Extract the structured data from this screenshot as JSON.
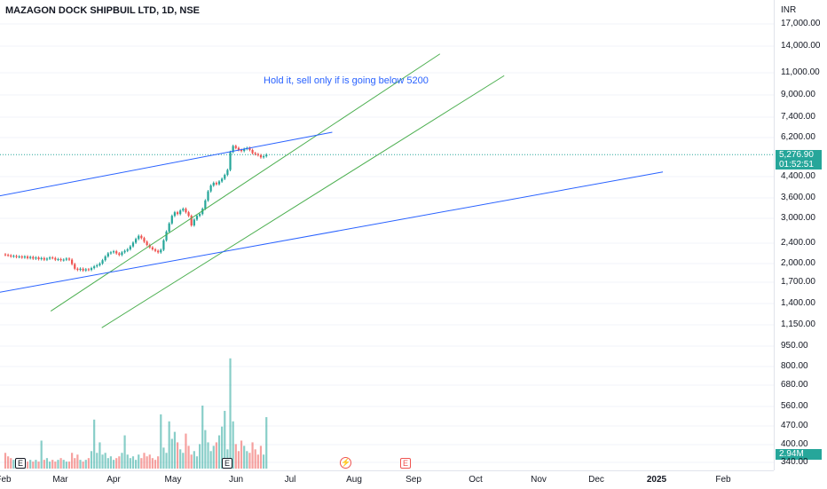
{
  "header": {
    "title": "MAZAGON DOCK SHIPBUIL LTD, 1D, NSE",
    "currency": "INR"
  },
  "annotation": "Hold it, sell only if is going below 5200",
  "price_tag": {
    "price": "5,276.90",
    "countdown": "01:52:51"
  },
  "volume_tag": "2.94M",
  "colors": {
    "up": "#26a69a",
    "down": "#ef5350",
    "channel": "#4caf50",
    "trend": "#2962ff"
  },
  "events": {
    "earnings_label": "E",
    "flash_icon": "lightning-icon"
  },
  "chart_data": {
    "type": "candlestick",
    "title": "MAZAGON DOCK SHIPBUIL LTD, 1D, NSE",
    "scale": "log",
    "price_axis_ticks": [
      "17,000.00",
      "14,000.00",
      "11,000.00",
      "9,000.00",
      "7,400.00",
      "6,200.00",
      "4,400.00",
      "3,600.00",
      "3,000.00",
      "2,400.00",
      "2,000.00",
      "1,700.00",
      "1,400.00",
      "1,150.00",
      "950.00",
      "800.00",
      "680.00",
      "560.00",
      "470.00",
      "400.00",
      "340.00"
    ],
    "time_axis_ticks": [
      "Feb",
      "Mar",
      "Apr",
      "May",
      "Jun",
      "Jul",
      "Aug",
      "Sep",
      "Oct",
      "Nov",
      "Dec",
      "2025",
      "Feb"
    ],
    "last_price": 5276.9,
    "closes": [
      2150,
      2140,
      2120,
      2130,
      2110,
      2120,
      2100,
      2120,
      2090,
      2110,
      2080,
      2100,
      2070,
      2090,
      2060,
      2080,
      2100,
      2090,
      2060,
      2070,
      2050,
      2060,
      2080,
      2060,
      1980,
      1900,
      1880,
      1900,
      1870,
      1890,
      1880,
      1910,
      1940,
      1960,
      1990,
      2050,
      2120,
      2180,
      2200,
      2220,
      2180,
      2150,
      2200,
      2230,
      2260,
      2320,
      2400,
      2480,
      2550,
      2500,
      2420,
      2350,
      2300,
      2260,
      2230,
      2200,
      2250,
      2450,
      2650,
      2850,
      3050,
      3150,
      3100,
      3200,
      3250,
      3150,
      3050,
      2800,
      2950,
      3050,
      3100,
      3250,
      3500,
      3800,
      4000,
      4100,
      4050,
      4150,
      4250,
      4400,
      4600,
      5400,
      5700,
      5600,
      5500,
      5450,
      5550,
      5600,
      5500,
      5350,
      5300,
      5250,
      5150,
      5200,
      5277
    ],
    "volumes": [
      0.9,
      0.7,
      0.6,
      0.5,
      0.4,
      0.5,
      0.6,
      0.5,
      0.4,
      0.5,
      0.4,
      0.5,
      0.4,
      1.6,
      0.5,
      0.6,
      0.4,
      0.5,
      0.4,
      0.5,
      0.6,
      0.5,
      0.4,
      0.4,
      0.9,
      0.6,
      0.8,
      0.5,
      0.4,
      0.5,
      0.6,
      1.0,
      2.8,
      0.9,
      1.5,
      0.8,
      0.9,
      0.6,
      0.7,
      0.5,
      0.6,
      0.7,
      0.9,
      1.9,
      0.8,
      0.6,
      0.7,
      0.5,
      0.8,
      0.6,
      0.9,
      0.7,
      0.8,
      0.6,
      0.5,
      0.7,
      3.1,
      1.2,
      0.9,
      2.7,
      1.7,
      2.1,
      1.5,
      1.1,
      0.9,
      2.0,
      1.3,
      0.8,
      1.0,
      0.7,
      1.4,
      3.6,
      2.2,
      1.5,
      1.0,
      1.3,
      1.5,
      1.9,
      2.4,
      3.3,
      1.1,
      6.3,
      2.7,
      1.4,
      1.0,
      1.6,
      1.3,
      1.0,
      0.9,
      1.5,
      1.1,
      0.8,
      1.3,
      0.8,
      2.94
    ],
    "volume_axis_max": 7.0,
    "trendlines": [
      {
        "name": "channel-upper",
        "color": "#4caf50",
        "points": [
          [
            "2024-02-26",
            1300
          ],
          [
            "2024-09-19",
            13000
          ]
        ]
      },
      {
        "name": "channel-lower",
        "color": "#4caf50",
        "points": [
          [
            "2024-03-24",
            1120
          ],
          [
            "2024-10-23",
            10700
          ]
        ]
      },
      {
        "name": "trend-upper",
        "color": "#2962ff",
        "points": [
          [
            "2024-01-26",
            3600
          ],
          [
            "2024-07-24",
            6450
          ]
        ]
      },
      {
        "name": "trend-lower",
        "color": "#2962ff",
        "points": [
          [
            "2024-01-26",
            1520
          ],
          [
            "2025-01-15",
            4520
          ]
        ]
      }
    ]
  }
}
